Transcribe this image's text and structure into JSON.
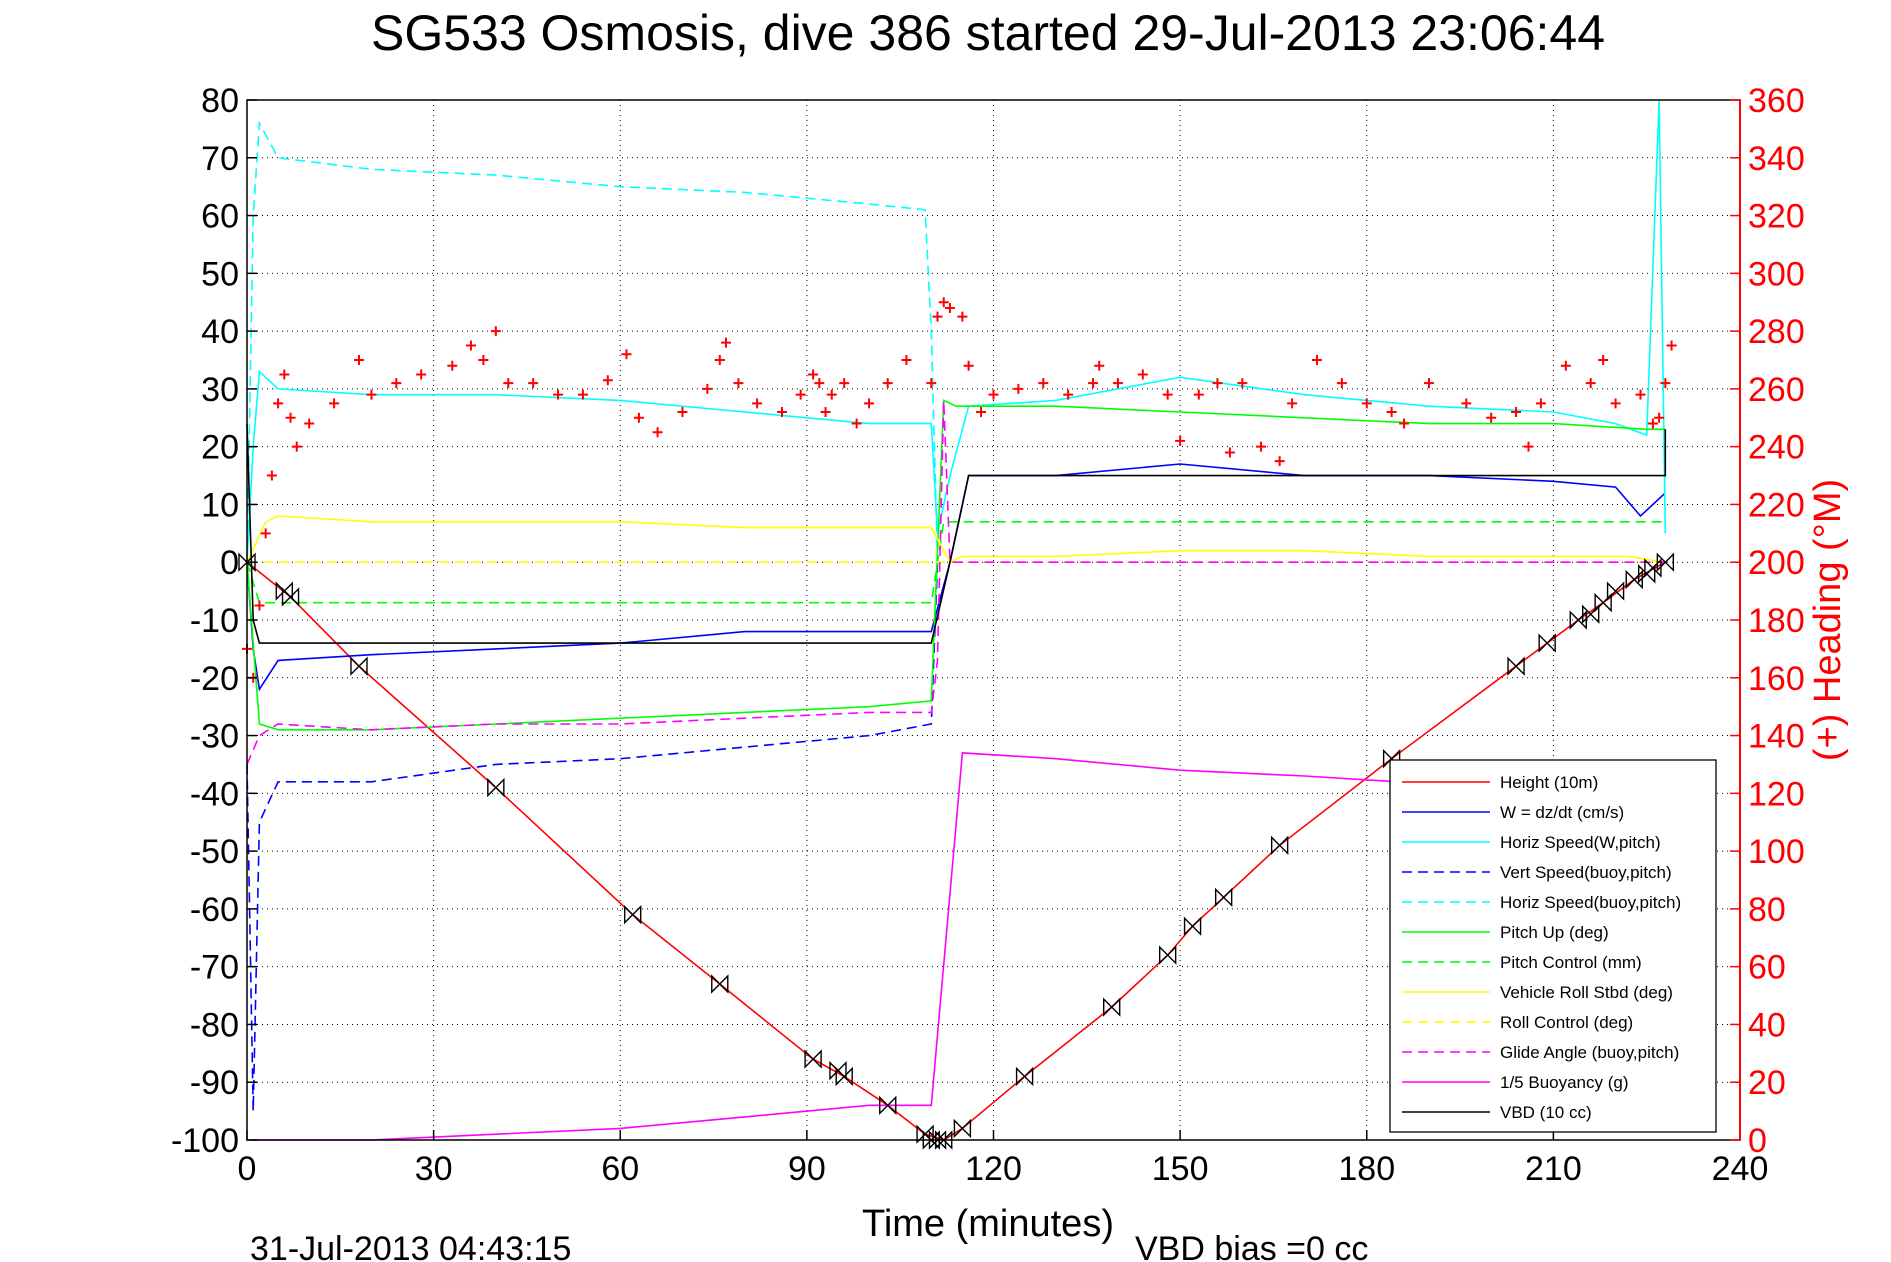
{
  "chart_data": {
    "type": "line",
    "title": "SG533 Osmosis, dive 386 started 29-Jul-2013 23:06:44",
    "xlabel": "Time (minutes)",
    "ylabel_right": "(+) Heading (°M)",
    "footer_left": "31-Jul-2013 04:43:15",
    "footer_right": "VBD bias =0 cc",
    "xlim": [
      0,
      240
    ],
    "ylim": [
      -100,
      80
    ],
    "ylim_right": [
      0,
      360
    ],
    "x_ticks": [
      0,
      30,
      60,
      90,
      120,
      150,
      180,
      210,
      240
    ],
    "y_ticks": [
      80,
      70,
      60,
      50,
      40,
      30,
      20,
      10,
      0,
      -10,
      -20,
      -30,
      -40,
      -50,
      -60,
      -70,
      -80,
      -90,
      -100
    ],
    "y_ticks_right": [
      360,
      340,
      320,
      300,
      280,
      260,
      240,
      220,
      200,
      180,
      160,
      140,
      120,
      100,
      80,
      60,
      40,
      20,
      0
    ],
    "grid": true,
    "legend_position": "bottom-right",
    "colors": {
      "right_axis": "#ff0000"
    },
    "series": [
      {
        "name": "Height (10m)",
        "color": "#ff0000",
        "dash": "solid",
        "x": [
          0,
          7,
          18,
          40,
          62,
          76,
          91,
          96,
          103,
          109,
          112,
          115,
          125,
          139,
          148,
          152,
          157,
          166,
          184,
          204,
          209,
          214,
          218,
          223,
          228
        ],
        "y": [
          0,
          -6,
          -18,
          -39,
          -61,
          -73,
          -86,
          -89,
          -94,
          -99,
          -100,
          -98,
          -89,
          -77,
          -68,
          -63,
          -58,
          -49,
          -34,
          -18,
          -14,
          -10,
          -7,
          -3,
          0
        ]
      },
      {
        "name": "W = dz/dt (cm/s)",
        "color": "#0000ff",
        "dash": "solid",
        "x": [
          0,
          1,
          2,
          5,
          20,
          40,
          60,
          80,
          100,
          110,
          111,
          113,
          116,
          130,
          150,
          170,
          190,
          210,
          220,
          224,
          228
        ],
        "y": [
          0,
          -15,
          -22,
          -17,
          -16,
          -15,
          -14,
          -12,
          -12,
          -12,
          -8,
          0,
          15,
          15,
          17,
          15,
          15,
          14,
          13,
          8,
          12
        ]
      },
      {
        "name": "Horiz Speed(W,pitch)",
        "color": "#00ffff",
        "dash": "solid",
        "x": [
          0,
          1,
          2,
          5,
          20,
          40,
          60,
          80,
          100,
          110,
          111,
          113,
          116,
          130,
          150,
          170,
          190,
          210,
          220,
          225,
          227,
          228
        ],
        "y": [
          0,
          20,
          33,
          30,
          29,
          29,
          28,
          26,
          24,
          24,
          5,
          15,
          27,
          28,
          32,
          29,
          27,
          26,
          24,
          22,
          80,
          5
        ]
      },
      {
        "name": "Vert Speed(buoy,pitch)",
        "color": "#0000ff",
        "dash": "dashed",
        "x": [
          0,
          1,
          2,
          5,
          20,
          40,
          60,
          80,
          100,
          110,
          111
        ],
        "y": [
          -35,
          -95,
          -45,
          -38,
          -38,
          -35,
          -34,
          -32,
          -30,
          -28,
          0
        ]
      },
      {
        "name": "Horiz Speed(buoy,pitch)",
        "color": "#00ffff",
        "dash": "dashed",
        "x": [
          0,
          1,
          2,
          5,
          20,
          40,
          60,
          80,
          100,
          109,
          110,
          111
        ],
        "y": [
          0,
          60,
          76,
          70,
          68,
          67,
          65,
          64,
          62,
          61,
          40,
          0
        ]
      },
      {
        "name": "Pitch Up (deg)",
        "color": "#00ff00",
        "dash": "solid",
        "x": [
          0,
          2,
          5,
          20,
          40,
          60,
          80,
          100,
          110,
          112,
          114,
          130,
          150,
          170,
          190,
          210,
          225,
          228
        ],
        "y": [
          0,
          -28,
          -29,
          -29,
          -28,
          -27,
          -26,
          -25,
          -24,
          28,
          27,
          27,
          26,
          25,
          24,
          24,
          23,
          23
        ]
      },
      {
        "name": "Pitch Control (mm)",
        "color": "#00ff00",
        "dash": "dashed",
        "x": [
          0,
          2,
          5,
          20,
          40,
          60,
          80,
          100,
          110,
          112,
          115,
          130,
          150,
          170,
          190,
          210,
          228
        ],
        "y": [
          0,
          -7,
          -7,
          -7,
          -7,
          -7,
          -7,
          -7,
          -7,
          7,
          7,
          7,
          7,
          7,
          7,
          7,
          7
        ]
      },
      {
        "name": "Vehicle Roll Stbd (deg)",
        "color": "#ffff00",
        "dash": "solid",
        "x": [
          0,
          3,
          5,
          20,
          40,
          60,
          80,
          100,
          110,
          113,
          115,
          130,
          150,
          170,
          190,
          210,
          222,
          228
        ],
        "y": [
          0,
          7,
          8,
          7,
          7,
          7,
          6,
          6,
          6,
          0,
          1,
          1,
          2,
          2,
          1,
          1,
          1,
          0
        ]
      },
      {
        "name": "Roll Control (deg)",
        "color": "#ffff00",
        "dash": "dashed",
        "x": [
          0,
          228
        ],
        "y": [
          0,
          0
        ]
      },
      {
        "name": "Glide Angle (buoy,pitch)",
        "color": "#ff00ff",
        "dash": "dashed",
        "x": [
          0,
          2,
          5,
          20,
          40,
          60,
          80,
          100,
          110,
          111,
          112,
          113,
          130,
          150,
          170,
          190,
          210,
          228
        ],
        "y": [
          -35,
          -30,
          -28,
          -29,
          -28,
          -28,
          -27,
          -26,
          -26,
          -17,
          28,
          0,
          0,
          0,
          0,
          0,
          0,
          0
        ]
      },
      {
        "name": "1/5 Buoyancy (g)",
        "color": "#ff00ff",
        "dash": "solid",
        "x": [
          1,
          5,
          20,
          40,
          60,
          80,
          100,
          109,
          110,
          115,
          130,
          150,
          170,
          185
        ],
        "y": [
          -100,
          -100,
          -100,
          -99,
          -98,
          -96,
          -94,
          -94,
          -94,
          -33,
          -34,
          -36,
          -37,
          -38
        ]
      },
      {
        "name": "VBD (10 cc)",
        "color": "#000000",
        "dash": "solid",
        "x": [
          0,
          1,
          2,
          110,
          113,
          116,
          228,
          228
        ],
        "y": [
          24,
          -10,
          -14,
          -14,
          0,
          15,
          15,
          23
        ]
      }
    ],
    "heading_series": {
      "name": "Heading",
      "color": "#ff0000",
      "marker": "+",
      "axis": "right",
      "x": [
        0,
        1,
        2,
        3,
        4,
        5,
        6,
        7,
        8,
        10,
        14,
        18,
        20,
        24,
        28,
        33,
        36,
        38,
        40,
        42,
        46,
        50,
        54,
        58,
        61,
        63,
        66,
        70,
        74,
        76,
        77,
        79,
        82,
        86,
        89,
        91,
        92,
        93,
        94,
        96,
        98,
        100,
        103,
        106,
        110,
        111,
        112,
        113,
        115,
        116,
        118,
        120,
        124,
        128,
        132,
        136,
        137,
        140,
        144,
        148,
        150,
        153,
        156,
        158,
        160,
        163,
        166,
        168,
        172,
        176,
        180,
        184,
        186,
        190,
        196,
        200,
        204,
        206,
        208,
        212,
        216,
        218,
        220,
        224,
        226,
        227,
        228,
        229
      ],
      "y": [
        170,
        160,
        185,
        210,
        230,
        255,
        265,
        250,
        240,
        248,
        255,
        270,
        258,
        262,
        265,
        268,
        275,
        270,
        280,
        262,
        262,
        258,
        258,
        263,
        272,
        250,
        245,
        252,
        260,
        270,
        276,
        262,
        255,
        252,
        258,
        265,
        262,
        252,
        258,
        262,
        248,
        255,
        262,
        270,
        262,
        285,
        290,
        288,
        285,
        268,
        252,
        258,
        260,
        262,
        258,
        262,
        268,
        262,
        265,
        258,
        242,
        258,
        262,
        238,
        262,
        240,
        235,
        255,
        270,
        262,
        255,
        252,
        248,
        262,
        255,
        250,
        252,
        240,
        255,
        268,
        262,
        270,
        255,
        258,
        248,
        250,
        262,
        275
      ]
    },
    "depth_markers": {
      "series": "Height (10m)",
      "marker": "triangle-pair",
      "x": [
        0,
        6,
        7,
        18,
        40,
        62,
        76,
        91,
        95,
        96,
        103,
        109,
        110,
        111,
        112,
        115,
        125,
        139,
        148,
        152,
        157,
        166,
        184,
        204,
        209,
        214,
        216,
        218,
        220,
        223,
        225,
        226,
        228
      ],
      "y": [
        0,
        -5,
        -6,
        -18,
        -39,
        -61,
        -73,
        -86,
        -88,
        -89,
        -94,
        -99,
        -100,
        -100,
        -100,
        -98,
        -89,
        -77,
        -68,
        -63,
        -58,
        -49,
        -34,
        -18,
        -14,
        -10,
        -9,
        -7,
        -5,
        -3,
        -2,
        -1,
        0
      ]
    }
  }
}
